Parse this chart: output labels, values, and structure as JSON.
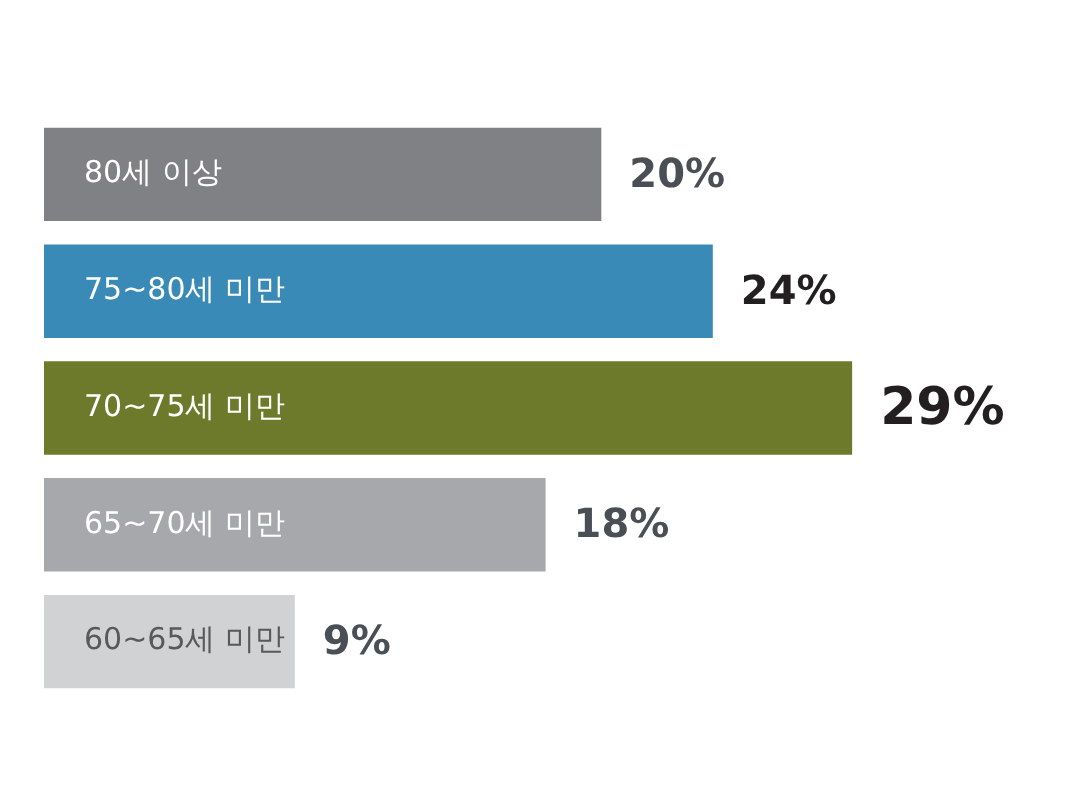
{
  "chart_data": {
    "type": "bar",
    "orientation": "horizontal",
    "categories": [
      "80세 이상",
      "75~80세 미만",
      "70~75세 미만",
      "65~70세 미만",
      "60~65세 미만"
    ],
    "values": [
      20,
      24,
      29,
      18,
      9
    ],
    "colors": [
      "#808184",
      "#3a8ab8",
      "#6e7a2b",
      "#a7a8ab",
      "#d1d2d4"
    ],
    "value_labels": [
      "20%",
      "24%",
      "29%",
      "18%",
      "9%"
    ],
    "tick_labels": "y",
    "grid": false,
    "legend": false
  }
}
